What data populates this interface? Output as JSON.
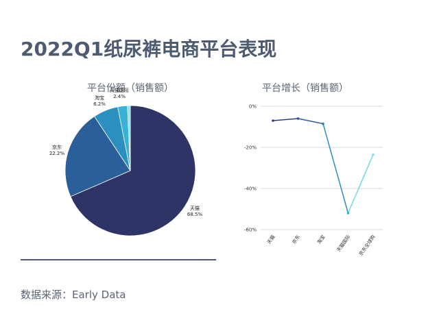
{
  "title": "2022Q1纸尿裤电商平台表现",
  "source": "数据来源：Early Data",
  "chart_data": [
    {
      "type": "pie",
      "title": "平台份额（销售额）",
      "categories": [
        "天猫",
        "京东",
        "淘宝",
        "天猫国际"
      ],
      "values": [
        68.5,
        22.2,
        6.2,
        2.4
      ],
      "labels": [
        "68.5%",
        "22.2%",
        "6.2%",
        "2.4%"
      ],
      "colors": [
        "#2e3466",
        "#2a5f9a",
        "#2b8fbf",
        "#3ab2d6",
        "#7fe3f0"
      ]
    },
    {
      "type": "line",
      "title": "平台增长（销售额）",
      "categories": [
        "天猫",
        "京东",
        "淘宝",
        "天猫国际",
        "京东全球购"
      ],
      "values": [
        -7,
        -6,
        -8.5,
        -52,
        -23.5
      ],
      "ylim": [
        -60,
        0
      ],
      "yticks": [
        0,
        -20,
        -40,
        -60
      ],
      "ytick_labels": [
        "0%",
        "-20%",
        "-40%",
        "-60%"
      ],
      "grid": true
    }
  ]
}
